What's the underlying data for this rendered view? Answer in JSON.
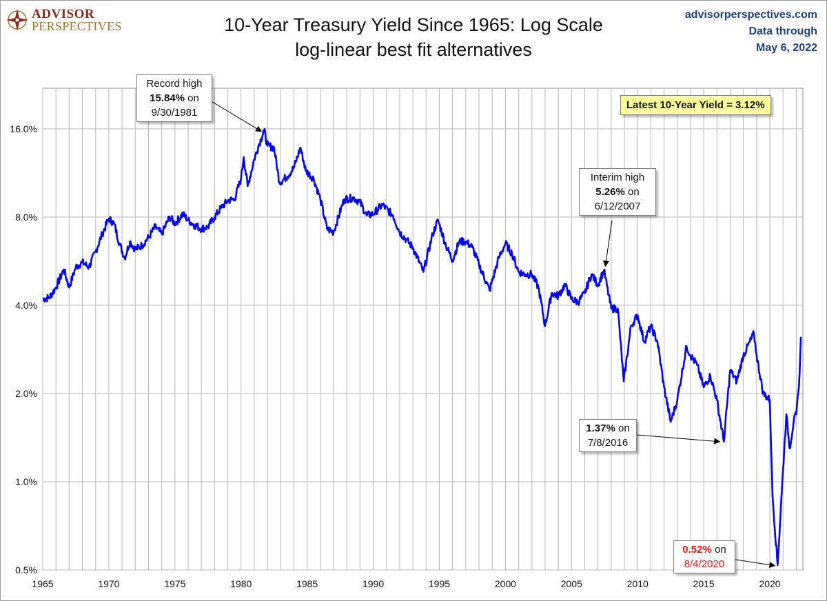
{
  "logo": {
    "line1": "ADVISOR",
    "line2": "PERSPECTIVES"
  },
  "title": "10-Year Treasury Yield Since 1965: Log Scale",
  "subtitle": "log-linear best fit alternatives",
  "source": {
    "site": "advisorperspectives.com",
    "data_through": "Data through",
    "date": "May 6, 2022"
  },
  "annotations": {
    "record_high": {
      "line1": "Record high",
      "value": "15.84%",
      "suffix": " on",
      "date": "9/30/1981"
    },
    "interim_high": {
      "line1": "Interim high",
      "value": "5.26%",
      "suffix": " on",
      "date": "6/12/2007"
    },
    "low_2016": {
      "value": "1.37%",
      "suffix": " on",
      "date": "7/8/2016"
    },
    "low_2020": {
      "value": "0.52%",
      "suffix": " on",
      "date": "8/4/2020"
    },
    "latest": "Latest 10-Year Yield = 3.12%"
  },
  "colors": {
    "line": "#0000ff",
    "grid": "#b8b8b8",
    "latest_bg": "#ffff99",
    "low_text": "#ee1111"
  },
  "chart_data": {
    "type": "line",
    "title": "10-Year Treasury Yield Since 1965: Log Scale",
    "subtitle": "log-linear best fit alternatives",
    "y_scale": "log2",
    "ylim": [
      0.5,
      22
    ],
    "y_ticks": [
      0.5,
      1,
      2,
      4,
      8,
      16
    ],
    "y_tick_labels": [
      "0.5%",
      "1.0%",
      "2.0%",
      "4.0%",
      "8.0%",
      "16.0%"
    ],
    "xlim": [
      1965,
      2022.5
    ],
    "x_ticks": [
      1965,
      1970,
      1975,
      1980,
      1985,
      1990,
      1995,
      2000,
      2005,
      2010,
      2015,
      2020
    ],
    "x_tick_labels": [
      "1965",
      "1970",
      "1975",
      "1980",
      "1985",
      "1990",
      "1995",
      "2000",
      "2005",
      "2010",
      "2015",
      "2020"
    ],
    "grid": true,
    "series": [
      {
        "x": [
          1965.0,
          1965.5,
          1966.0,
          1966.6,
          1967.0,
          1967.5,
          1968.0,
          1968.5,
          1969.0,
          1969.5,
          1970.0,
          1970.4,
          1970.8,
          1971.2,
          1971.6,
          1972.0,
          1972.5,
          1973.0,
          1973.5,
          1974.0,
          1974.6,
          1975.0,
          1975.6,
          1976.0,
          1976.5,
          1977.0,
          1977.5,
          1978.0,
          1978.5,
          1979.0,
          1979.5,
          1980.0,
          1980.2,
          1980.5,
          1981.0,
          1981.3,
          1981.75,
          1982.0,
          1982.5,
          1982.9,
          1983.5,
          1984.0,
          1984.5,
          1984.9,
          1985.5,
          1986.0,
          1986.5,
          1987.0,
          1987.8,
          1988.5,
          1989.0,
          1989.5,
          1990.0,
          1990.7,
          1991.5,
          1992.0,
          1992.5,
          1993.0,
          1993.8,
          1994.5,
          1994.9,
          1995.5,
          1996.0,
          1996.5,
          1997.0,
          1997.5,
          1998.0,
          1998.8,
          1999.5,
          2000.0,
          2000.5,
          2001.0,
          2001.5,
          2002.0,
          2002.5,
          2003.0,
          2003.5,
          2004.0,
          2004.5,
          2005.0,
          2005.5,
          2006.0,
          2006.5,
          2007.0,
          2007.45,
          2008.0,
          2008.5,
          2008.95,
          2009.5,
          2010.0,
          2010.5,
          2011.0,
          2011.5,
          2012.0,
          2012.5,
          2013.0,
          2013.7,
          2014.0,
          2014.5,
          2015.0,
          2015.5,
          2016.0,
          2016.52,
          2017.0,
          2017.5,
          2018.0,
          2018.8,
          2019.0,
          2019.5,
          2020.0,
          2020.2,
          2020.59,
          2021.0,
          2021.25,
          2021.5,
          2021.8,
          2022.0,
          2022.2,
          2022.35
        ],
        "y": [
          4.2,
          4.25,
          4.6,
          5.3,
          4.6,
          5.4,
          5.6,
          5.4,
          6.1,
          7.0,
          7.9,
          7.6,
          6.5,
          5.8,
          6.6,
          6.2,
          6.4,
          6.8,
          7.4,
          7.0,
          8.0,
          7.6,
          8.2,
          7.8,
          7.5,
          7.3,
          7.4,
          8.0,
          8.6,
          9.1,
          9.2,
          10.8,
          12.8,
          10.2,
          12.6,
          13.9,
          15.84,
          14.0,
          13.8,
          10.5,
          11.0,
          11.8,
          13.8,
          11.5,
          10.8,
          9.2,
          7.3,
          7.1,
          9.2,
          9.3,
          9.0,
          8.1,
          8.2,
          8.8,
          8.1,
          7.1,
          6.7,
          6.3,
          5.2,
          7.0,
          7.8,
          6.4,
          5.7,
          6.6,
          6.6,
          6.3,
          5.5,
          4.5,
          5.8,
          6.5,
          6.0,
          5.2,
          5.1,
          5.1,
          4.6,
          3.4,
          4.4,
          4.3,
          4.7,
          4.2,
          4.1,
          4.4,
          5.1,
          4.7,
          5.26,
          3.9,
          3.9,
          2.2,
          3.4,
          3.7,
          3.0,
          3.4,
          3.0,
          2.1,
          1.6,
          1.9,
          2.9,
          2.7,
          2.5,
          2.1,
          2.3,
          1.9,
          1.37,
          2.4,
          2.2,
          2.7,
          3.2,
          2.7,
          2.0,
          1.9,
          0.9,
          0.52,
          1.1,
          1.7,
          1.3,
          1.6,
          1.7,
          2.1,
          3.12
        ]
      }
    ],
    "latest_label": "Latest 10-Year Yield = 3.12%"
  }
}
